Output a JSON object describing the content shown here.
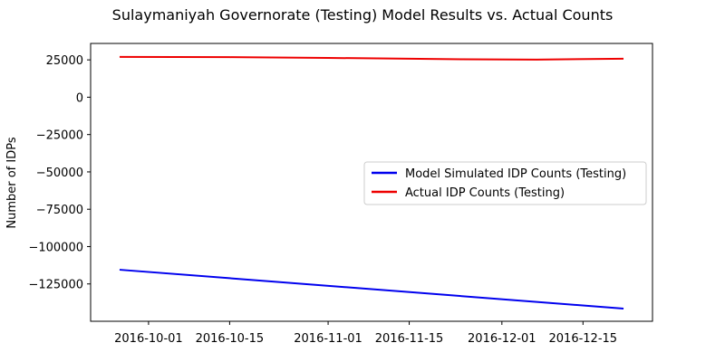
{
  "chart_data": {
    "type": "line",
    "title": "Sulaymaniyah Governorate (Testing) Model Results vs. Actual Counts",
    "xlabel": "",
    "ylabel": "Number of IDPs",
    "xlim": [
      "2016-09-21",
      "2016-12-27"
    ],
    "ylim": [
      -150000,
      36000
    ],
    "x_ticks": [
      "2016-10-01",
      "2016-10-15",
      "2016-11-01",
      "2016-11-15",
      "2016-12-01",
      "2016-12-15"
    ],
    "y_ticks": [
      25000,
      0,
      -25000,
      -50000,
      -75000,
      -100000,
      -125000
    ],
    "grid": false,
    "legend_position": "center-right",
    "series": [
      {
        "name": "Model Simulated IDP Counts (Testing)",
        "color": "#0000ee",
        "points": [
          {
            "x": "2016-09-26",
            "y": -115500
          },
          {
            "x": "2016-12-22",
            "y": -141500
          }
        ]
      },
      {
        "name": "Actual IDP Counts (Testing)",
        "color": "#ee0000",
        "points": [
          {
            "x": "2016-09-26",
            "y": 27000
          },
          {
            "x": "2016-10-15",
            "y": 26800
          },
          {
            "x": "2016-11-01",
            "y": 26300
          },
          {
            "x": "2016-11-15",
            "y": 25800
          },
          {
            "x": "2016-11-24",
            "y": 25400
          },
          {
            "x": "2016-12-07",
            "y": 25200
          },
          {
            "x": "2016-12-22",
            "y": 25800
          }
        ]
      }
    ]
  }
}
